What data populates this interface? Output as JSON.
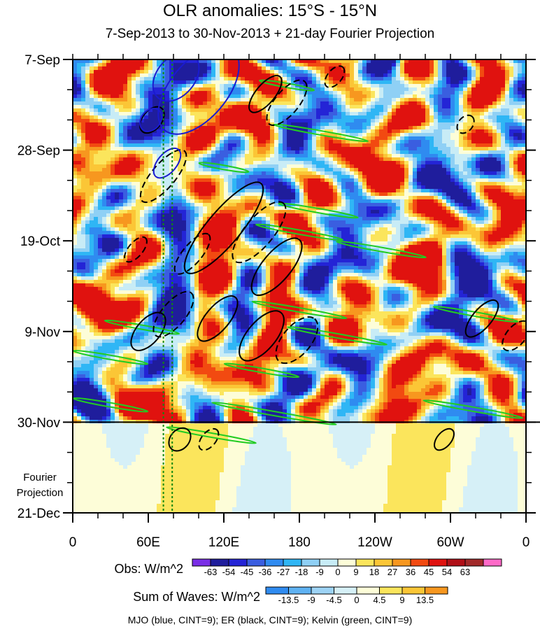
{
  "chart_data": {
    "type": "heatmap",
    "title": "OLR anomalies: 15°S - 15°N",
    "subtitle": "7-Sep-2013 to 30-Nov-2013 + 21-day Fourier Projection",
    "x_ticks": [
      "0",
      "60E",
      "120E",
      "180",
      "120W",
      "60W",
      "0"
    ],
    "x_values": [
      0,
      60,
      120,
      180,
      240,
      300,
      360
    ],
    "y_ticks": [
      "7-Sep",
      "28-Sep",
      "19-Oct",
      "9-Nov",
      "30-Nov",
      "21-Dec"
    ],
    "y_days": [
      0,
      21,
      42,
      63,
      84,
      105
    ],
    "projection_label_line1": "Fourier",
    "projection_label_line2": "Projection",
    "obs_colorbar": {
      "label": "Obs: W/m^2",
      "levels": [
        "-63",
        "-54",
        "-45",
        "-36",
        "-27",
        "-18",
        "-9",
        "0",
        "9",
        "18",
        "27",
        "36",
        "45",
        "54",
        "63"
      ],
      "colors": [
        "#7a2ee6",
        "#1f1d9c",
        "#2424d6",
        "#3a5ee0",
        "#2f8bf0",
        "#2fb6f5",
        "#8fd0f5",
        "#c8ecf6",
        "#fdfdd8",
        "#fbe55c",
        "#fbc636",
        "#f7971f",
        "#f24a11",
        "#e0120f",
        "#b00f17",
        "#a22a2a",
        "#ff6ac8"
      ]
    },
    "waves_colorbar": {
      "label": "Sum of Waves: W/m^2",
      "levels": [
        "-13.5",
        "-9",
        "-4.5",
        "0",
        "4.5",
        "9",
        "13.5"
      ],
      "colors": [
        "#2f8bf0",
        "#5fb2f2",
        "#9dd3f5",
        "#d6f0f7",
        "#fdfdd8",
        "#fbe55c",
        "#fbc636",
        "#f7971f"
      ]
    },
    "footer": "MJO (blue, CINT=9); ER (black, CINT=9); Kelvin (green, CINT=9)",
    "features": {
      "obs_end_day": 84,
      "mjo_contours": [
        {
          "lon": 82,
          "day": 4,
          "len": 22,
          "wid": 8
        },
        {
          "lon": 100,
          "day": 7,
          "len": 42,
          "wid": 12
        },
        {
          "lon": 62,
          "day": 14,
          "len": 10,
          "wid": 4
        },
        {
          "lon": 75,
          "day": 24,
          "len": 14,
          "wid": 4
        }
      ],
      "er_contours": [
        {
          "lon": 153,
          "day": 8,
          "len": 18,
          "wid": 4,
          "dash": false
        },
        {
          "lon": 170,
          "day": 10,
          "len": 22,
          "wid": 5,
          "dash": true
        },
        {
          "lon": 208,
          "day": 4,
          "len": 10,
          "wid": 3,
          "dash": true
        },
        {
          "lon": 63,
          "day": 14,
          "len": 12,
          "wid": 4,
          "dash": false
        },
        {
          "lon": 72,
          "day": 27,
          "len": 26,
          "wid": 5,
          "dash": true
        },
        {
          "lon": 120,
          "day": 39,
          "len": 46,
          "wid": 7,
          "dash": false
        },
        {
          "lon": 148,
          "day": 40,
          "len": 30,
          "wid": 6,
          "dash": true
        },
        {
          "lon": 162,
          "day": 48,
          "len": 28,
          "wid": 6,
          "dash": false
        },
        {
          "lon": 95,
          "day": 45,
          "len": 20,
          "wid": 4,
          "dash": true
        },
        {
          "lon": 50,
          "day": 44,
          "len": 12,
          "wid": 3,
          "dash": true
        },
        {
          "lon": 60,
          "day": 63,
          "len": 18,
          "wid": 5,
          "dash": false
        },
        {
          "lon": 80,
          "day": 59,
          "len": 22,
          "wid": 5,
          "dash": true
        },
        {
          "lon": 115,
          "day": 60,
          "len": 22,
          "wid": 5,
          "dash": false
        },
        {
          "lon": 150,
          "day": 64,
          "len": 24,
          "wid": 6,
          "dash": false
        },
        {
          "lon": 178,
          "day": 65,
          "len": 22,
          "wid": 6,
          "dash": true
        },
        {
          "lon": 325,
          "day": 60,
          "len": 18,
          "wid": 4,
          "dash": false
        },
        {
          "lon": 352,
          "day": 64,
          "len": 14,
          "wid": 4,
          "dash": true
        },
        {
          "lon": 312,
          "day": 15,
          "len": 8,
          "wid": 3,
          "dash": true
        },
        {
          "lon": 85,
          "day": 88,
          "len": 10,
          "wid": 4,
          "dash": false
        },
        {
          "lon": 108,
          "day": 88,
          "len": 10,
          "wid": 3,
          "dash": true
        },
        {
          "lon": 295,
          "day": 88,
          "len": 10,
          "wid": 3,
          "dash": false
        }
      ],
      "kelvin_contours": [
        {
          "lon": 197,
          "day": 17,
          "len": 38,
          "wid": 2
        },
        {
          "lon": 170,
          "day": 6,
          "len": 22,
          "wid": 2
        },
        {
          "lon": 120,
          "day": 25,
          "len": 20,
          "wid": 2
        },
        {
          "lon": 195,
          "day": 35,
          "len": 32,
          "wid": 2
        },
        {
          "lon": 180,
          "day": 40,
          "len": 35,
          "wid": 2
        },
        {
          "lon": 245,
          "day": 44,
          "len": 36,
          "wid": 2
        },
        {
          "lon": 180,
          "day": 58,
          "len": 38,
          "wid": 2
        },
        {
          "lon": 210,
          "day": 64,
          "len": 40,
          "wid": 2
        },
        {
          "lon": 320,
          "day": 59,
          "len": 34,
          "wid": 2
        },
        {
          "lon": 55,
          "day": 62,
          "len": 30,
          "wid": 2
        },
        {
          "lon": 30,
          "day": 69,
          "len": 30,
          "wid": 2
        },
        {
          "lon": 150,
          "day": 72,
          "len": 30,
          "wid": 2
        },
        {
          "lon": 30,
          "day": 80,
          "len": 30,
          "wid": 2
        },
        {
          "lon": 160,
          "day": 82,
          "len": 50,
          "wid": 2
        },
        {
          "lon": 318,
          "day": 81,
          "len": 40,
          "wid": 2
        },
        {
          "lon": 110,
          "day": 87,
          "len": 36,
          "wid": 2
        }
      ],
      "green_dotted_lons": [
        72,
        79
      ]
    }
  }
}
